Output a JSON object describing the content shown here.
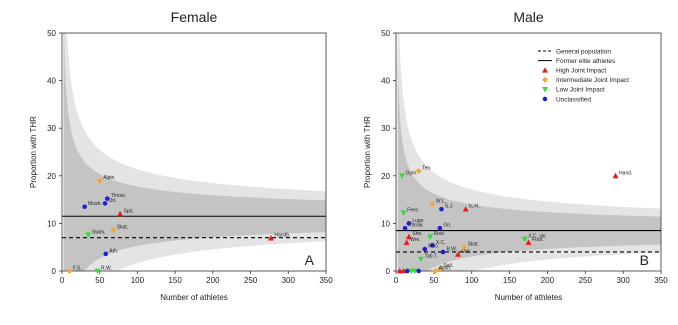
{
  "colors": {
    "outer_band": "#e4e4e4",
    "inner_band": "#c4c4c4",
    "high": "#e41a1c",
    "intermediate": "#f4a636",
    "low": "#33dd33",
    "unclassified": "#1f1fd1"
  },
  "chart_data": [
    {
      "type": "scatter",
      "title": "Female",
      "panel_label": "A",
      "xlabel": "Number of athletes",
      "ylabel": "Proportion with THR",
      "xlim": [
        0,
        350
      ],
      "ylim": [
        0,
        50
      ],
      "xticks": [
        0,
        50,
        100,
        150,
        200,
        250,
        300,
        350
      ],
      "yticks": [
        0,
        10,
        20,
        30,
        40,
        50
      ],
      "general_population": 7,
      "former_elite": 11.5,
      "funnel_center": 11.5,
      "points": [
        {
          "label": "Alpin.",
          "n": 50,
          "p": 19,
          "group": "intermediate"
        },
        {
          "label": "Throw.",
          "n": 60,
          "p": 15.2,
          "group": "unclassified"
        },
        {
          "label": "Ori.",
          "n": 57,
          "p": 14.2,
          "group": "unclassified"
        },
        {
          "label": "Mush.",
          "n": 30,
          "p": 13.5,
          "group": "unclassified"
        },
        {
          "label": "Spri.",
          "n": 77,
          "p": 12,
          "group": "high"
        },
        {
          "label": "Swim.",
          "n": 35,
          "p": 7.6,
          "group": "low"
        },
        {
          "label": "Skat.",
          "n": 68,
          "p": 8.6,
          "group": "intermediate"
        },
        {
          "label": "Handb.",
          "n": 277,
          "p": 6.9,
          "group": "high"
        },
        {
          "label": "Ath.",
          "n": 58,
          "p": 3.6,
          "group": "unclassified"
        },
        {
          "label": "F.S.",
          "n": 10,
          "p": 0,
          "group": "intermediate"
        },
        {
          "label": "R.W.",
          "n": 47,
          "p": 0,
          "group": "low"
        }
      ]
    },
    {
      "type": "scatter",
      "title": "Male",
      "panel_label": "B",
      "xlabel": "Number of athletes",
      "ylabel": "Proportion with THR",
      "xlim": [
        0,
        350
      ],
      "ylim": [
        0,
        50
      ],
      "xticks": [
        0,
        50,
        100,
        150,
        200,
        250,
        300,
        350
      ],
      "yticks": [
        0,
        10,
        20,
        30,
        40,
        50
      ],
      "general_population": 4,
      "former_elite": 8.5,
      "funnel_center": 8.5,
      "points": [
        {
          "label": "Ten.",
          "n": 30,
          "p": 21,
          "group": "intermediate"
        },
        {
          "label": "Gym.",
          "n": 8,
          "p": 20,
          "group": "low"
        },
        {
          "label": "Hand.",
          "n": 290,
          "p": 20,
          "group": "high"
        },
        {
          "label": "W.L.",
          "n": 48,
          "p": 14.1,
          "group": "intermediate"
        },
        {
          "label": "S.J.",
          "n": 60,
          "p": 13,
          "group": "unclassified"
        },
        {
          "label": "Ic.H.",
          "n": 92,
          "p": 13,
          "group": "high"
        },
        {
          "label": "Fenc.",
          "n": 10,
          "p": 12.2,
          "group": "low"
        },
        {
          "label": "Luge",
          "n": 17,
          "p": 10,
          "group": "unclassified"
        },
        {
          "label": "Throw.",
          "n": 12,
          "p": 9,
          "group": "unclassified"
        },
        {
          "label": "Ori.",
          "n": 58,
          "p": 9,
          "group": "unclassified"
        },
        {
          "label": "Row.",
          "n": 45,
          "p": 7.2,
          "group": "low"
        },
        {
          "label": "Sho.",
          "n": 17,
          "p": 7.2,
          "group": "high"
        },
        {
          "label": "Wre.",
          "n": 14,
          "p": 6,
          "group": "high"
        },
        {
          "label": "X.C.",
          "n": 48,
          "p": 5.4,
          "group": "unclassified"
        },
        {
          "label": "Skat.",
          "n": 90,
          "p": 5,
          "group": "intermediate"
        },
        {
          "label": "X.C. ski",
          "n": 170,
          "p": 6.7,
          "group": "low"
        },
        {
          "label": "Foot.",
          "n": 175,
          "p": 6,
          "group": "high"
        },
        {
          "label": "Mus.",
          "n": 38,
          "p": 4.6,
          "group": "unclassified"
        },
        {
          "label": "B.W.",
          "n": 62,
          "p": 4,
          "group": "unclassified"
        },
        {
          "label": "Voll.",
          "n": 82,
          "p": 3.5,
          "group": "high"
        },
        {
          "label": "Tab.T.",
          "n": 33,
          "p": 2.5,
          "group": "low"
        },
        {
          "label": "Sail.",
          "n": 58,
          "p": 0.5,
          "group": "intermediate"
        },
        {
          "label": "Alpin.",
          "n": 52,
          "p": 0,
          "group": "intermediate"
        },
        {
          "label": "",
          "n": 5,
          "p": 0,
          "group": "high"
        },
        {
          "label": "",
          "n": 10,
          "p": 0,
          "group": "high"
        },
        {
          "label": "",
          "n": 15,
          "p": 0,
          "group": "unclassified"
        },
        {
          "label": "",
          "n": 20,
          "p": 0,
          "group": "low"
        },
        {
          "label": "",
          "n": 25,
          "p": 0,
          "group": "low"
        },
        {
          "label": "",
          "n": 30,
          "p": 0,
          "group": "unclassified"
        }
      ],
      "legend": {
        "placement": "top-right",
        "items": [
          {
            "kind": "dashed",
            "label": "General population"
          },
          {
            "kind": "solid",
            "label": "Former elite athletes"
          },
          {
            "kind": "marker",
            "group": "high",
            "label": "High Joint Impact"
          },
          {
            "kind": "marker",
            "group": "intermediate",
            "label": "Intermediate Joint Impact"
          },
          {
            "kind": "marker",
            "group": "low",
            "label": "Low Joint Impact"
          },
          {
            "kind": "marker",
            "group": "unclassified",
            "label": "Unclassified"
          }
        ]
      }
    }
  ]
}
